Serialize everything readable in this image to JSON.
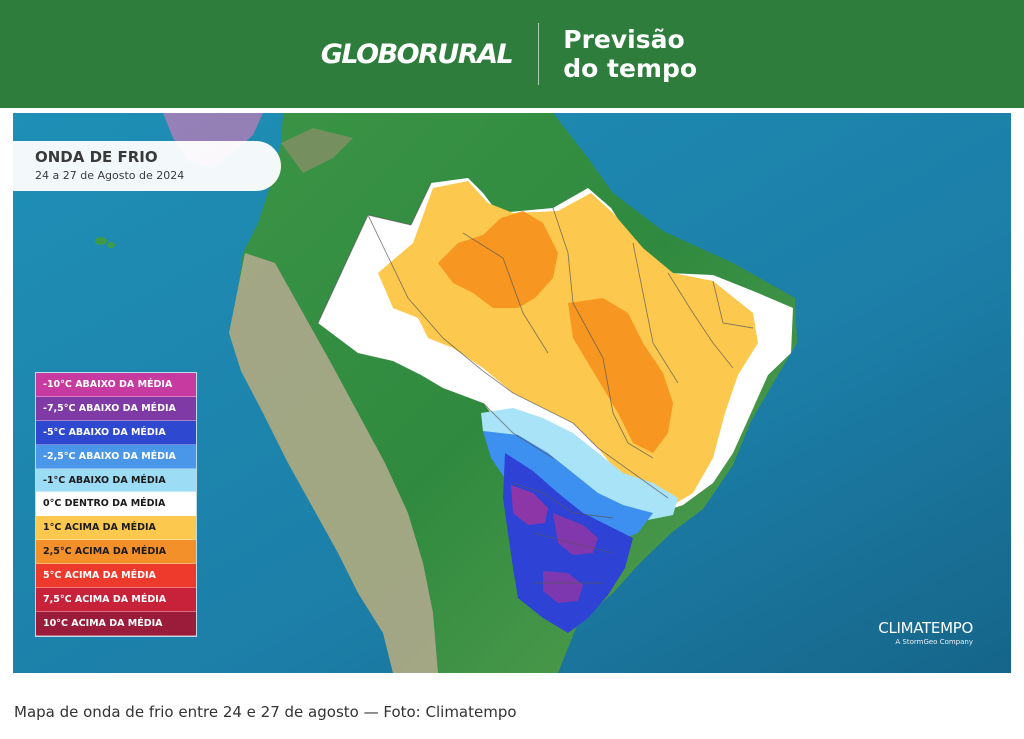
{
  "header": {
    "logo_text": "GLOBORURAL",
    "title_line1": "Previsão",
    "title_line2": "do tempo"
  },
  "map": {
    "title": "ONDA DE FRIO",
    "subtitle": "24 a 27 de Agosto de 2024",
    "credit_brand": "CLIMATEMPO",
    "credit_sub": "A StormGeo Company",
    "colors": {
      "ocean": "#1c7fa8",
      "land": "#3e9a48",
      "andes": "#b5aa8f",
      "neutral": "#ffffff",
      "plus1": "#fcc94e",
      "plus2_5": "#f7931e",
      "minus1": "#a9e3f7",
      "minus2_5": "#3d8ff0",
      "minus5": "#2e42d6",
      "minus7_5": "#8c36a8"
    },
    "legend": [
      {
        "label": "-10°C ABAIXO DA MÉDIA",
        "color": "#c73aa0",
        "text_color": "#ffffff"
      },
      {
        "label": "-7,5°C ABAIXO DA MÉDIA",
        "color": "#7f3aa6",
        "text_color": "#ffffff"
      },
      {
        "label": "-5°C ABAIXO DA MÉDIA",
        "color": "#2f48d0",
        "text_color": "#ffffff"
      },
      {
        "label": "-2,5°C ABAIXO DA MÉDIA",
        "color": "#4a97ea",
        "text_color": "#ffffff"
      },
      {
        "label": "-1°C ABAIXO DA MÉDIA",
        "color": "#9ddcf5",
        "text_color": "#1a1a1a"
      },
      {
        "label": "0°C DENTRO DA MÉDIA",
        "color": "#ffffff",
        "text_color": "#1a1a1a"
      },
      {
        "label": "1°C ACIMA DA MÉDIA",
        "color": "#fcc94e",
        "text_color": "#1a1a1a"
      },
      {
        "label": "2,5°C ACIMA DA MÉDIA",
        "color": "#f3902a",
        "text_color": "#1a1a1a"
      },
      {
        "label": "5°C ACIMA DA MÉDIA",
        "color": "#ee3a2c",
        "text_color": "#ffffff"
      },
      {
        "label": "7,5°C ACIMA DA MÉDIA",
        "color": "#c8223b",
        "text_color": "#ffffff"
      },
      {
        "label": "10°C ACIMA DA MÉDIA",
        "color": "#9b1c3a",
        "text_color": "#ffffff"
      }
    ]
  },
  "caption": "Mapa de onda de frio entre 24 e 27 de agosto — Foto: Climatempo"
}
